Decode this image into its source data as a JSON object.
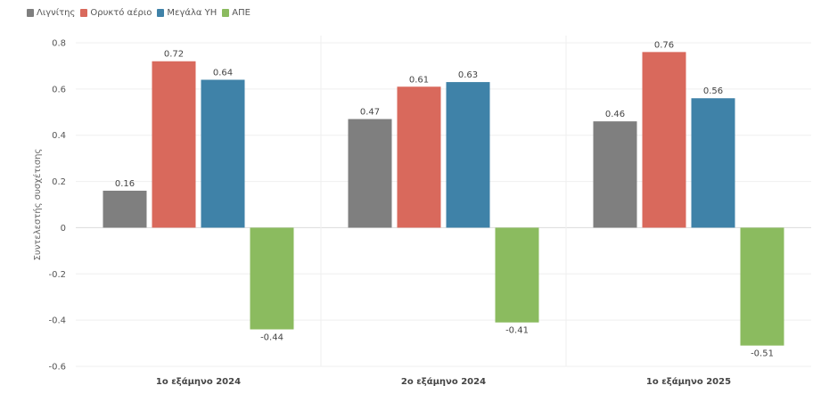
{
  "chart_data": {
    "type": "bar",
    "ylabel": "Συντελεστής συσχέτισης",
    "xlabel": "",
    "ylim": [
      -0.6,
      0.8
    ],
    "yticks": [
      "0.8",
      "0.6",
      "0.4",
      "0.2",
      "0",
      "-0.2",
      "-0.4",
      "-0.6"
    ],
    "categories": [
      "1ο εξάμηνο 2024",
      "2ο εξάμηνο 2024",
      "1ο εξάμηνο 2025"
    ],
    "legend_position": "top-left",
    "grid": true,
    "series": [
      {
        "name": "Λιγνίτης",
        "color": "#7f7f7f",
        "values": [
          0.16,
          0.47,
          0.46
        ],
        "labels": [
          "0.16",
          "0.47",
          "0.46"
        ]
      },
      {
        "name": "Ορυκτό αέριο",
        "color": "#d9695c",
        "values": [
          0.72,
          0.61,
          0.76
        ],
        "labels": [
          "0.72",
          "0.61",
          "0.76"
        ]
      },
      {
        "name": "Μεγάλα ΥΗ",
        "color": "#3f82a8",
        "values": [
          0.64,
          0.63,
          0.56
        ],
        "labels": [
          "0.64",
          "0.63",
          "0.56"
        ]
      },
      {
        "name": "ΑΠΕ",
        "color": "#8bbb5f",
        "values": [
          -0.44,
          -0.41,
          -0.51
        ],
        "labels": [
          "-0.44",
          "-0.41",
          "-0.51"
        ]
      }
    ]
  }
}
